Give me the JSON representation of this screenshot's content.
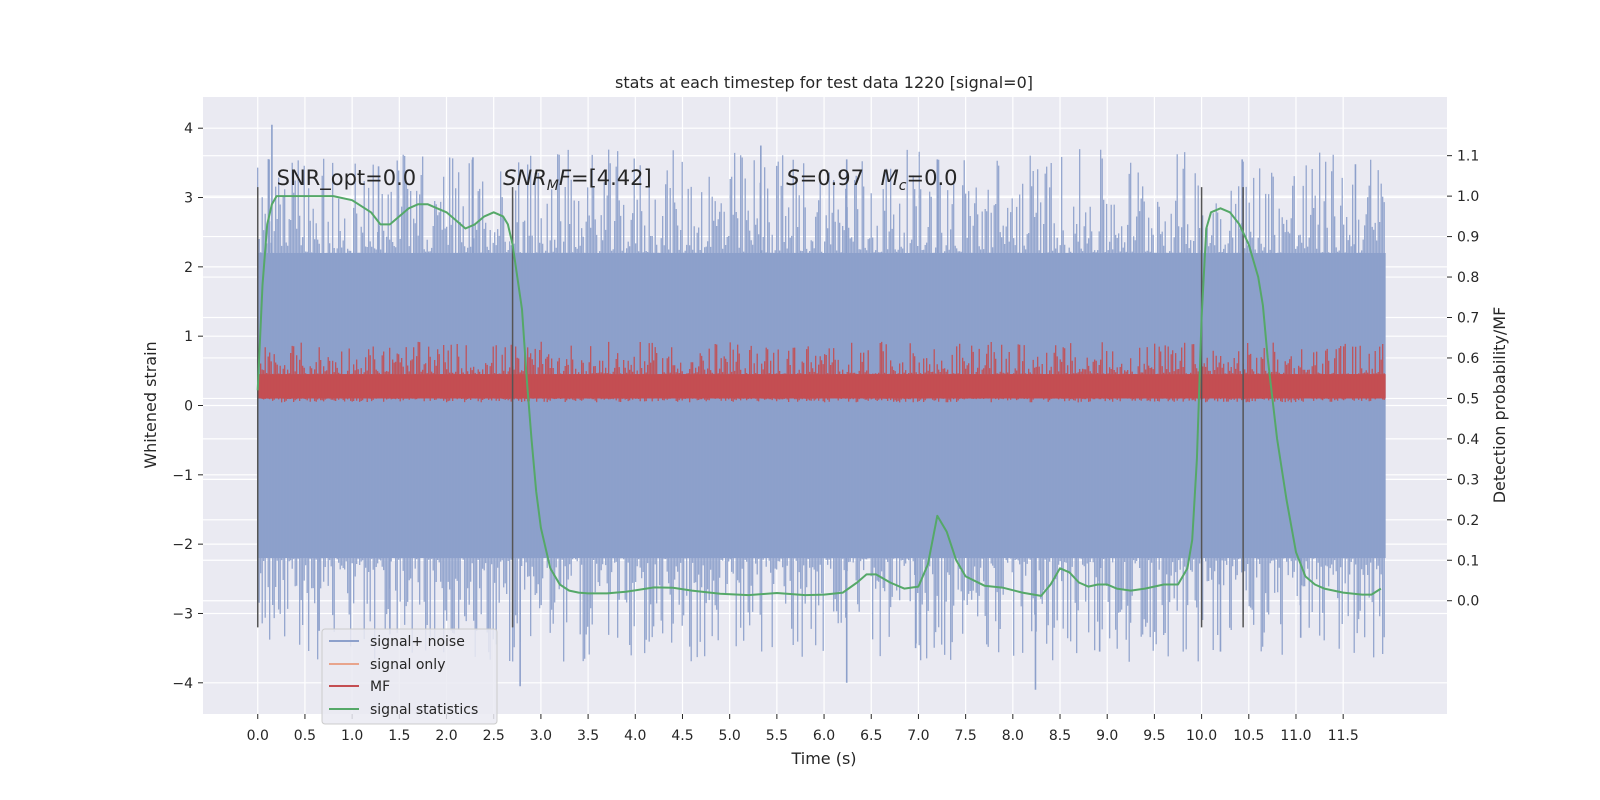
{
  "chart_data": {
    "type": "line",
    "title": "stats at each timestep for test data 1220 [signal=0]",
    "xlabel": "Time (s)",
    "ylabel": "Whitened strain",
    "y2label": "Detection probability/MF",
    "xlim": [
      -0.58,
      12.6
    ],
    "ylim": [
      -4.45,
      4.45
    ],
    "y2lim": [
      -0.28,
      1.245
    ],
    "x_ticks": [
      0.0,
      0.5,
      1.0,
      1.5,
      2.0,
      2.5,
      3.0,
      3.5,
      4.0,
      4.5,
      5.0,
      5.5,
      6.0,
      6.5,
      7.0,
      7.5,
      8.0,
      8.5,
      9.0,
      9.5,
      10.0,
      10.5,
      11.0,
      11.5
    ],
    "x_tick_labels": [
      "0.0",
      "0.5",
      "1.0",
      "1.5",
      "2.0",
      "2.5",
      "3.0",
      "3.5",
      "4.0",
      "4.5",
      "5.0",
      "5.5",
      "6.0",
      "6.5",
      "7.0",
      "7.5",
      "8.0",
      "8.5",
      "9.0",
      "9.5",
      "10.0",
      "10.5",
      "11.0",
      "11.5"
    ],
    "y_ticks": [
      4,
      3,
      2,
      1,
      0,
      -1,
      -2,
      -3,
      -4
    ],
    "y_tick_labels": [
      "4",
      "3",
      "2",
      "1",
      "0",
      "−1",
      "−2",
      "−3",
      "−4"
    ],
    "y2_ticks": [
      1.1,
      1.0,
      0.9,
      0.8,
      0.7,
      0.6,
      0.5,
      0.4,
      0.3,
      0.2,
      0.1,
      0.0
    ],
    "y2_tick_labels": [
      "1.1",
      "1.0",
      "0.9",
      "0.8",
      "0.7",
      "0.6",
      "0.5",
      "0.4",
      "0.3",
      "0.2",
      "0.1",
      "0.0"
    ],
    "grid": true,
    "legend_placement": "lower-left",
    "annotations": [
      {
        "id": "snr-opt",
        "x": 0.2,
        "y": 3.18,
        "text": "SNR_opt=0.0"
      },
      {
        "id": "snr-mf",
        "x": 2.6,
        "y": 3.18,
        "text": "SNR_MF=[4.42]"
      },
      {
        "id": "s-stat",
        "x": 5.6,
        "y": 3.18,
        "text": "S=0.97"
      },
      {
        "id": "mc",
        "x": 6.6,
        "y": 3.18,
        "text": "M_c=0.0"
      }
    ],
    "vertical_markers": [
      {
        "x": 0.0,
        "y_from": -3.2,
        "y_to": 3.15
      },
      {
        "x": 2.7,
        "y_from": -3.2,
        "y_to": 3.15
      },
      {
        "x": 10.0,
        "y_from": -3.2,
        "y_to": 3.15
      },
      {
        "x": 10.44,
        "y_from": -3.2,
        "y_to": 3.15
      }
    ],
    "series": [
      {
        "name": "signal+ noise",
        "color": "#8da0cb",
        "axis": "left",
        "band_x": [
          0.0,
          11.95
        ],
        "band_y": [
          -2.2,
          2.2
        ],
        "peak_range": [
          -4.1,
          4.05
        ],
        "spike_peaks": [
          {
            "x": 0.15,
            "y": 4.05
          },
          {
            "x": 0.12,
            "y": 3.55
          },
          {
            "x": 1.28,
            "y": 3.45
          },
          {
            "x": 2.28,
            "y": 3.58
          },
          {
            "x": 5.33,
            "y": 3.75
          },
          {
            "x": 6.24,
            "y": 3.55
          },
          {
            "x": 7.2,
            "y": 3.55
          },
          {
            "x": 10.43,
            "y": 3.55
          },
          {
            "x": 11.63,
            "y": 3.48
          },
          {
            "x": 2.78,
            "y": -4.05
          },
          {
            "x": 6.24,
            "y": -4.0
          },
          {
            "x": 8.24,
            "y": -4.1
          },
          {
            "x": 10.2,
            "y": -3.55
          },
          {
            "x": 11.05,
            "y": -3.35
          },
          {
            "x": 0.65,
            "y": -3.25
          },
          {
            "x": 1.4,
            "y": -3.3
          },
          {
            "x": 6.97,
            "y": -3.5
          },
          {
            "x": 8.92,
            "y": -3.55
          }
        ]
      },
      {
        "name": "signal only",
        "color": "#e8a48c",
        "axis": "left",
        "values": []
      },
      {
        "name": "MF",
        "color": "#c44e52",
        "axis": "right",
        "band_x": [
          0.0,
          11.95
        ],
        "band_y2": [
          0.5,
          0.56
        ],
        "peak_range": [
          0.49,
          0.64
        ]
      },
      {
        "name": "signal statistics",
        "color": "#55a868",
        "axis": "right",
        "x": [
          0.0,
          0.05,
          0.1,
          0.15,
          0.2,
          0.3,
          0.5,
          0.8,
          1.0,
          1.2,
          1.3,
          1.4,
          1.5,
          1.6,
          1.7,
          1.8,
          1.9,
          2.0,
          2.1,
          2.2,
          2.3,
          2.4,
          2.5,
          2.6,
          2.65,
          2.7,
          2.8,
          2.85,
          2.9,
          2.95,
          3.0,
          3.1,
          3.2,
          3.3,
          3.4,
          3.5,
          3.7,
          3.9,
          4.2,
          4.4,
          4.6,
          4.9,
          5.2,
          5.5,
          5.8,
          6.0,
          6.2,
          6.35,
          6.45,
          6.55,
          6.7,
          6.85,
          7.0,
          7.1,
          7.2,
          7.3,
          7.4,
          7.5,
          7.7,
          7.9,
          8.1,
          8.3,
          8.4,
          8.5,
          8.6,
          8.7,
          8.8,
          8.9,
          9.0,
          9.1,
          9.25,
          9.4,
          9.6,
          9.75,
          9.85,
          9.9,
          9.95,
          10.0,
          10.05,
          10.1,
          10.2,
          10.3,
          10.4,
          10.5,
          10.6,
          10.65,
          10.7,
          10.8,
          10.9,
          11.0,
          11.1,
          11.2,
          11.3,
          11.5,
          11.7,
          11.8,
          11.9
        ],
        "values": [
          0.52,
          0.78,
          0.93,
          0.98,
          1.0,
          1.0,
          1.0,
          1.0,
          0.99,
          0.96,
          0.93,
          0.93,
          0.95,
          0.97,
          0.98,
          0.98,
          0.97,
          0.96,
          0.94,
          0.92,
          0.93,
          0.95,
          0.96,
          0.95,
          0.93,
          0.88,
          0.72,
          0.55,
          0.4,
          0.27,
          0.18,
          0.08,
          0.04,
          0.025,
          0.02,
          0.018,
          0.018,
          0.022,
          0.033,
          0.032,
          0.025,
          0.017,
          0.014,
          0.019,
          0.014,
          0.015,
          0.02,
          0.045,
          0.065,
          0.065,
          0.045,
          0.03,
          0.035,
          0.09,
          0.21,
          0.17,
          0.1,
          0.06,
          0.037,
          0.032,
          0.02,
          0.012,
          0.04,
          0.08,
          0.07,
          0.045,
          0.035,
          0.04,
          0.04,
          0.03,
          0.025,
          0.03,
          0.04,
          0.04,
          0.08,
          0.15,
          0.35,
          0.7,
          0.92,
          0.96,
          0.97,
          0.96,
          0.93,
          0.88,
          0.8,
          0.73,
          0.6,
          0.4,
          0.25,
          0.12,
          0.06,
          0.04,
          0.03,
          0.02,
          0.015,
          0.015,
          0.03
        ]
      }
    ]
  }
}
